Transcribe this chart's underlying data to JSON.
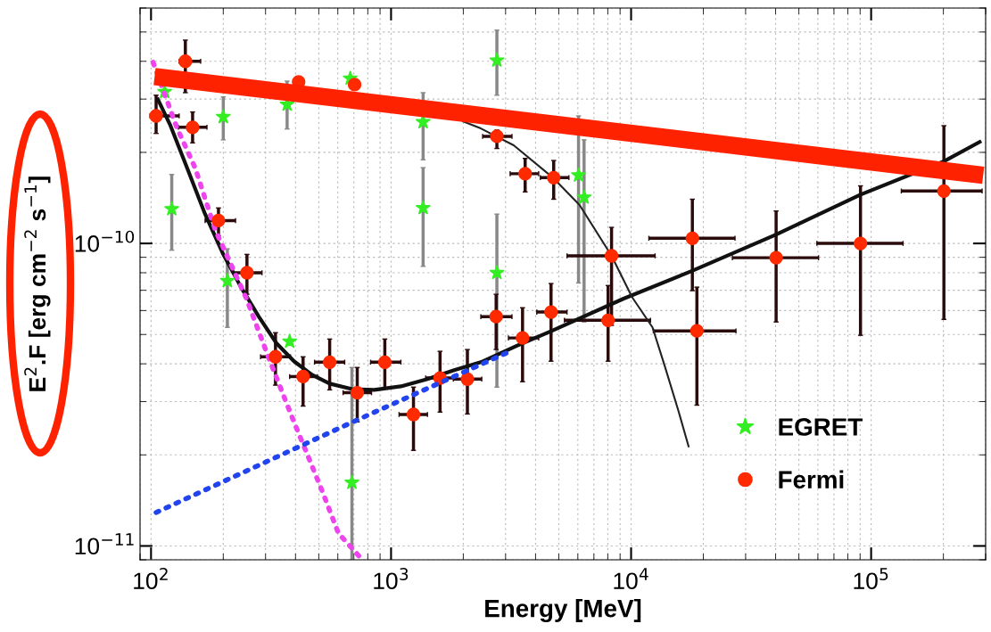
{
  "chart_data": {
    "type": "scatter",
    "xlabel": "Energy [MeV]",
    "ylabel": "E$^{2}$.F [erg cm$^{−2}$ s$^{−1}$]",
    "log": "xy",
    "grid": true,
    "legend": "bottom right",
    "xlim": [
      90,
      300000
    ],
    "ylim": [
      9e-12,
      6e-10
    ],
    "xticks": [
      {
        "value": 100,
        "label": "10$^{2}$"
      },
      {
        "value": 1000,
        "label": "10$^{3}$"
      },
      {
        "value": 10000,
        "label": "10$^{4}$"
      },
      {
        "value": 100000,
        "label": "10$^{5}$"
      }
    ],
    "yticks": [
      {
        "value": 1e-11,
        "label": "10$^{−11}$"
      },
      {
        "value": 1e-10,
        "label": "10$^{−10}$"
      }
    ],
    "series": [
      {
        "name": "EGRET",
        "type": "scatter",
        "marker": "star",
        "color": "#33ee22",
        "x": [
          114,
          122,
          200,
          208,
          369,
          378,
          676,
          687,
          1360,
          1360,
          2760,
          2760,
          6040,
          6370
        ],
        "values": [
          3.17e-10,
          1.3e-10,
          2.62e-10,
          7.52e-11,
          2.88e-10,
          4.74e-11,
          3.51e-10,
          1.62e-11,
          2.52e-10,
          1.31e-10,
          4.03e-10,
          8e-11,
          1.68e-10,
          1.42e-10
        ],
        "errors": [
          null,
          [
            9.5e-11,
            1.69e-10
          ],
          [
            2.2e-10,
            3.05e-10
          ],
          [
            5.28e-11,
            9.6e-11
          ],
          [
            2.39e-10,
            3.44e-10
          ],
          null,
          null,
          [
            9e-12,
            3.89e-11
          ],
          [
            1.89e-10,
            3.15e-10
          ],
          [
            8.4e-11,
            1.78e-10
          ],
          [
            3.09e-10,
            5.07e-10
          ],
          [
            3.35e-11,
            1.25e-10
          ],
          [
            7.4e-11,
            2.64e-10
          ],
          [
            5.5e-11,
            2.2e-10
          ]
        ]
      },
      {
        "name": "Fermi",
        "type": "scatter",
        "marker": "circle",
        "color": "#ff2a00",
        "x": [
          105,
          139,
          149,
          191,
          251,
          330,
          430,
          555,
          723,
          942,
          1240,
          1600,
          2080,
          2740,
          3530,
          4640,
          2760,
          3620,
          4760,
          8290,
          8020,
          18800,
          18000,
          40200,
          90300,
          201000,
          412,
          705
        ],
        "values": [
          2.64e-10,
          4e-10,
          2.42e-10,
          1.19e-10,
          8e-11,
          4.22e-11,
          3.63e-11,
          4.05e-11,
          3.21e-11,
          4.05e-11,
          2.72e-11,
          3.59e-11,
          3.56e-11,
          5.73e-11,
          4.87e-11,
          5.93e-11,
          2.26e-10,
          1.7e-10,
          1.65e-10,
          9.1e-11,
          5.57e-11,
          5.14e-11,
          1.04e-10,
          8.97e-11,
          1e-10,
          1.49e-10,
          3.42e-10,
          3.35e-10
        ],
        "xerrors": [
          [
            99,
            131
          ],
          [
            131,
            161
          ],
          [
            130,
            171
          ],
          [
            168,
            225
          ],
          [
            221,
            290
          ],
          [
            286,
            381
          ],
          [
            378,
            493
          ],
          [
            480,
            641
          ],
          [
            631,
            829
          ],
          [
            822,
            1099
          ],
          [
            1080,
            1418
          ],
          [
            1394,
            1832
          ],
          [
            1817,
            2387
          ],
          [
            2366,
            3190
          ],
          [
            3083,
            4121
          ],
          [
            4046,
            5408
          ],
          [
            2407,
            3190
          ],
          [
            3134,
            4121
          ],
          [
            4188,
            5508
          ],
          [
            5408,
            12590
          ],
          [
            5275,
            12050
          ],
          [
            12380,
            27350
          ],
          [
            11860,
            27100
          ],
          [
            26420,
            60400
          ],
          [
            59430,
            135800
          ],
          [
            133600,
            290000
          ],
          null,
          null
        ],
        "errors": [
          [
            2.31e-10,
            3.09e-10
          ],
          [
            3.15e-10,
            4.7e-10
          ],
          [
            2.15e-10,
            2.72e-10
          ],
          [
            1.06e-10,
            1.31e-10
          ],
          [
            6.79e-11,
            9.2e-11
          ],
          [
            3.4e-11,
            5.07e-11
          ],
          [
            2.9e-11,
            4.22e-11
          ],
          [
            3.28e-11,
            4.83e-11
          ],
          [
            2.57e-11,
            3.89e-11
          ],
          [
            3.33e-11,
            4.83e-11
          ],
          [
            2.07e-11,
            3.35e-11
          ],
          [
            2.77e-11,
            4.4e-11
          ],
          [
            2.73e-11,
            4.46e-11
          ],
          [
            4.46e-11,
            6.79e-11
          ],
          [
            3.49e-11,
            6.13e-11
          ],
          [
            4.08e-11,
            7.37e-11
          ],
          [
            2.06e-10,
            2.37e-10
          ],
          [
            1.48e-10,
            1.91e-10
          ],
          [
            1.4e-10,
            1.88e-10
          ],
          [
            5.36e-11,
            1.13e-10
          ],
          [
            4.08e-11,
            7.26e-11
          ],
          [
            2.92e-11,
            7.17e-11
          ],
          [
            6.98e-11,
            1.4e-10
          ],
          [
            5.5e-11,
            1.28e-10
          ],
          [
            4.97e-11,
            1.55e-10
          ],
          [
            5.61e-11,
            2.45e-10
          ],
          null,
          null
        ]
      },
      {
        "type": "line",
        "color": "#111111",
        "line_style": "solid",
        "x": [
          106,
          120,
          142,
          168,
          200,
          237,
          281,
          333,
          394,
          468,
          555,
          688,
          851,
          1099,
          1418,
          1832,
          2366,
          3327,
          4677,
          9268,
          17860,
          40200,
          90300,
          201400,
          287700
        ],
        "values": [
          3.03e-10,
          2.47e-10,
          1.76e-10,
          1.25e-10,
          9.2e-11,
          7.17e-11,
          5.73e-11,
          4.68e-11,
          4.08e-11,
          3.68e-11,
          3.44e-11,
          3.3e-11,
          3.28e-11,
          3.37e-11,
          3.56e-11,
          3.81e-11,
          4.05e-11,
          4.58e-11,
          5.14e-11,
          6.56e-11,
          8.1e-11,
          1.07e-10,
          1.45e-10,
          1.87e-10,
          2.18e-10
        ]
      },
      {
        "type": "line",
        "color": "#222222",
        "line_style": "solid",
        "x": [
          1977,
          2366,
          3243,
          4764,
          6100,
          8293,
          10090,
          12280,
          13830,
          15720,
          17400
        ],
        "values": [
          2.54e-10,
          2.4e-10,
          2.11e-10,
          1.64e-10,
          1.34e-10,
          9.1e-11,
          6.65e-11,
          5.28e-11,
          3.92e-11,
          2.81e-11,
          2.12e-11
        ]
      },
      {
        "type": "line",
        "color": "#ee44ee",
        "line_style": "dotted",
        "x": [
          102,
          128,
          153,
          185,
          249,
          308,
          394,
          444,
          518,
          604,
          760
        ],
        "values": [
          3.97e-10,
          2.42e-10,
          1.77e-10,
          1.11e-10,
          6.61e-11,
          4.22e-11,
          2.57e-11,
          2.04e-11,
          1.51e-11,
          1.1e-11,
          9e-12
        ]
      },
      {
        "type": "line",
        "color": "#2244ee",
        "line_style": "dotted",
        "x": [
          105,
          693,
          3134
        ],
        "values": [
          1.29e-11,
          2.57e-11,
          4.4e-11
        ]
      },
      {
        "type": "line",
        "color": "#ff2200",
        "line_style": "solid",
        "x": [
          103.5,
          293000
        ],
        "values": [
          3.56e-10,
          1.68e-10
        ]
      }
    ]
  }
}
